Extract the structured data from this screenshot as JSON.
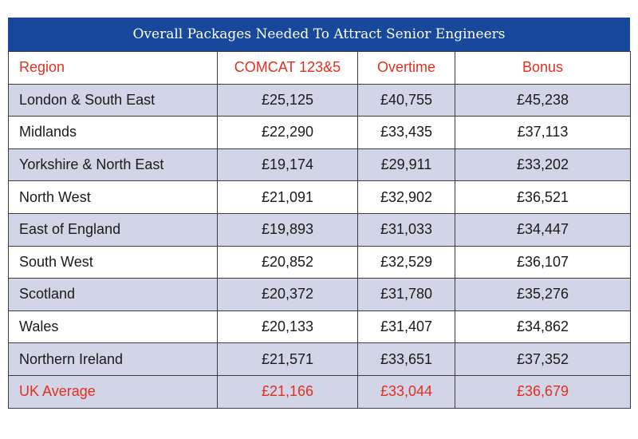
{
  "chart_data": {
    "type": "table",
    "title": "Overall Packages Needed To Attract Senior Engineers",
    "columns": [
      "Region",
      "COMCAT 123&5",
      "Overtime",
      "Bonus"
    ],
    "rows": [
      {
        "region": "London & South East",
        "comcat": "£25,125",
        "overtime": "£40,755",
        "bonus": "£45,238"
      },
      {
        "region": "Midlands",
        "comcat": "£22,290",
        "overtime": "£33,435",
        "bonus": "£37,113"
      },
      {
        "region": "Yorkshire & North East",
        "comcat": "£19,174",
        "overtime": "£29,911",
        "bonus": "£33,202"
      },
      {
        "region": "North West",
        "comcat": "£21,091",
        "overtime": "£32,902",
        "bonus": "£36,521"
      },
      {
        "region": "East of England",
        "comcat": "£19,893",
        "overtime": "£31,033",
        "bonus": "£34,447"
      },
      {
        "region": "South West",
        "comcat": "£20,852",
        "overtime": "£32,529",
        "bonus": "£36,107"
      },
      {
        "region": "Scotland",
        "comcat": "£20,372",
        "overtime": "£31,780",
        "bonus": "£35,276"
      },
      {
        "region": "Wales",
        "comcat": "£20,133",
        "overtime": "£31,407",
        "bonus": "£34,862"
      },
      {
        "region": "Northern Ireland",
        "comcat": "£21,571",
        "overtime": "£33,651",
        "bonus": "£37,352"
      }
    ],
    "average": {
      "region": "UK Average",
      "comcat": "£21,166",
      "overtime": "£33,044",
      "bonus": "£36,679"
    }
  },
  "colors": {
    "title_bg": "#17489c",
    "header_text": "#e1301f",
    "row_shade": "#d2d4e7",
    "border": "#3c3c3c"
  }
}
